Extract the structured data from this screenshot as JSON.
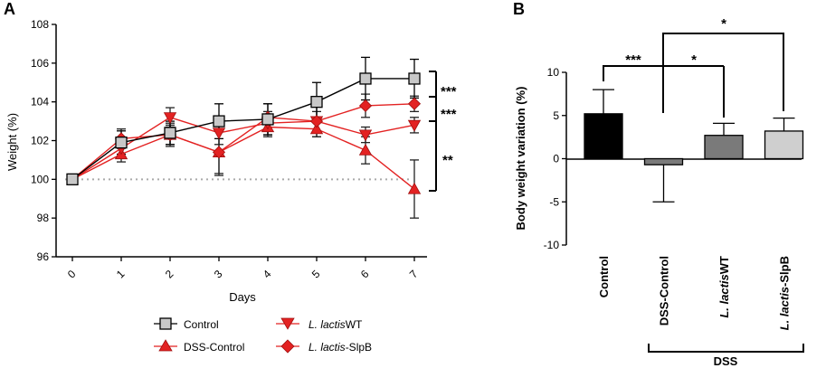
{
  "chart_data": [
    {
      "panel": "A",
      "type": "line",
      "xlabel": "Days",
      "ylabel": "Weight (%)",
      "x": [
        0,
        1,
        2,
        3,
        4,
        5,
        6,
        7
      ],
      "xticks": [
        "0",
        "1",
        "2",
        "3",
        "4",
        "5",
        "6",
        "7"
      ],
      "ylim": [
        96,
        108
      ],
      "yticks": [
        "96",
        "98",
        "100",
        "102",
        "104",
        "106",
        "108"
      ],
      "reference_line": 100,
      "series": [
        {
          "name": "Control",
          "label_parts": [
            "Control",
            ""
          ],
          "color": "#000000",
          "fill": "#c8c8c8",
          "marker": "square",
          "values": [
            100,
            101.9,
            102.4,
            103.0,
            103.1,
            104.0,
            105.2,
            105.2
          ],
          "err": [
            0,
            0.6,
            0.6,
            0.9,
            0.8,
            1.0,
            1.1,
            1.0
          ]
        },
        {
          "name": "DSS-Control",
          "label_parts": [
            "DSS-Control",
            ""
          ],
          "color": "#e32222",
          "fill": "#e32222",
          "marker": "triangle-up",
          "values": [
            100,
            101.3,
            102.3,
            101.4,
            102.7,
            102.6,
            101.5,
            99.5
          ],
          "err": [
            0,
            0.4,
            0.5,
            1.1,
            0.5,
            0.4,
            0.7,
            1.5
          ]
        },
        {
          "name": "L. lactisWT",
          "label_parts": [
            "L. lactis",
            "WT"
          ],
          "color": "#e32222",
          "fill": "#e32222",
          "marker": "triangle-down",
          "values": [
            100,
            101.6,
            103.2,
            102.4,
            102.9,
            103.0,
            102.3,
            102.8
          ],
          "err": [
            0,
            0.5,
            0.5,
            0.6,
            0.6,
            0.5,
            0.4,
            0.4
          ]
        },
        {
          "name": "L. lactis-SlpB",
          "label_parts": [
            "L. lactis",
            "-SlpB"
          ],
          "color": "#e32222",
          "fill": "#e32222",
          "marker": "diamond",
          "values": [
            100,
            102.1,
            102.3,
            101.4,
            103.2,
            103.0,
            103.8,
            103.9
          ],
          "err": [
            0,
            0.5,
            0.6,
            1.2,
            0.7,
            0.8,
            0.6,
            0.4
          ]
        }
      ],
      "significance": [
        "***",
        "***",
        "**"
      ]
    },
    {
      "panel": "B",
      "type": "bar",
      "ylabel": "Body weight variation (%)",
      "ylim": [
        -10,
        10
      ],
      "yticks": [
        "-10",
        "-5",
        "0",
        "5",
        "10"
      ],
      "categories": [
        "Control",
        "DSS-Control",
        "L. lactisWT",
        "L. lactis-SlpB"
      ],
      "category_parts": [
        [
          "Control",
          ""
        ],
        [
          "DSS-Control",
          ""
        ],
        [
          "L. lactis",
          "WT"
        ],
        [
          "L. lactis",
          "-SlpB"
        ]
      ],
      "values": [
        5.2,
        -0.7,
        2.7,
        3.2
      ],
      "err": [
        2.8,
        4.3,
        1.4,
        1.5
      ],
      "colors": [
        "#000000",
        "#7a7a7a",
        "#7a7a7a",
        "#cfcfcf"
      ],
      "significance": [
        "***",
        "*",
        "*"
      ],
      "group_label": "DSS"
    }
  ]
}
